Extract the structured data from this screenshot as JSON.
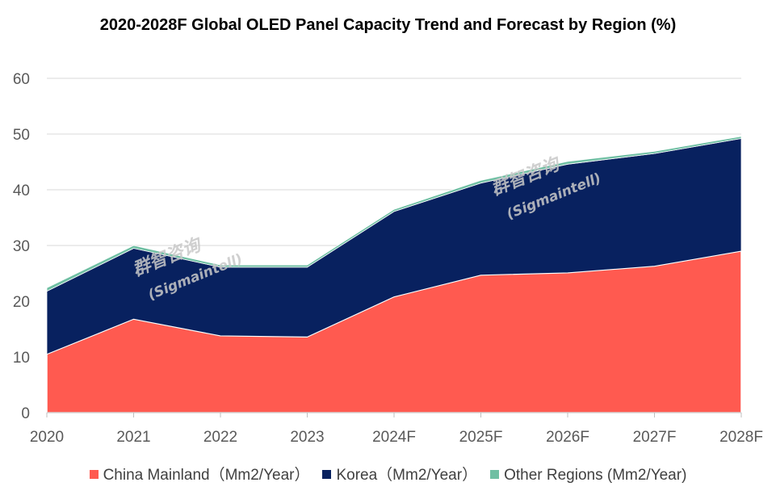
{
  "chart_data": {
    "type": "area",
    "stacked": true,
    "title": "2020-2028F Global OLED Panel Capacity Trend and Forecast by Region (%)",
    "xlabel": "",
    "ylabel": "",
    "ylim": [
      0,
      60
    ],
    "yticks": [
      0,
      10,
      20,
      30,
      40,
      50,
      60
    ],
    "grid": true,
    "legend_position": "bottom",
    "categories": [
      "2020",
      "2021",
      "2022",
      "2023",
      "2024F",
      "2025F",
      "2026F",
      "2027F",
      "2028F"
    ],
    "series": [
      {
        "name": "China Mainland（Mm2/Year）",
        "color": "#ff5a50",
        "values": [
          10.5,
          16.8,
          13.8,
          13.6,
          20.8,
          24.7,
          25.1,
          26.3,
          29.0
        ]
      },
      {
        "name": "Korea（Mm2/Year）",
        "color": "#08215f",
        "values": [
          11.3,
          12.7,
          12.3,
          12.5,
          15.3,
          16.5,
          19.5,
          20.2,
          20.2
        ]
      },
      {
        "name": "Other Regions (Mm2/Year)",
        "color": "#6fbfa3",
        "values": [
          0.6,
          0.5,
          0.4,
          0.4,
          0.4,
          0.5,
          0.5,
          0.4,
          0.4
        ]
      }
    ],
    "watermarks": [
      "群智咨询",
      "(Sigmaintell)"
    ]
  }
}
